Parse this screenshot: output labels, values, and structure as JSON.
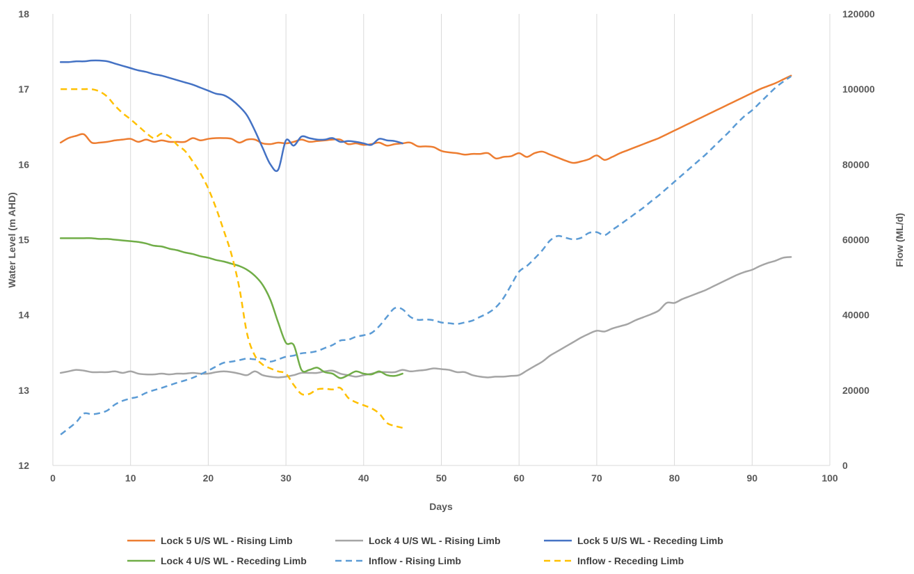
{
  "chart_data": {
    "type": "line",
    "xlabel": "Days",
    "ylabel": "Water Level (m AHD)",
    "y2label": "Flow (ML/d)",
    "xlim": [
      0,
      100
    ],
    "ylim": [
      12,
      18
    ],
    "y2lim": [
      0,
      120000
    ],
    "x_ticks": [
      0,
      10,
      20,
      30,
      40,
      50,
      60,
      70,
      80,
      90,
      100
    ],
    "y_ticks": [
      12,
      13,
      14,
      15,
      16,
      17,
      18
    ],
    "y2_ticks": [
      0,
      20000,
      40000,
      60000,
      80000,
      100000,
      120000
    ],
    "grid": "vertical",
    "legend_position": "bottom",
    "series": [
      {
        "name": "Lock 5 U/S WL - Rising Limb",
        "axis": "left",
        "color": "#ED7D31",
        "dash": "solid",
        "x": [
          1,
          2,
          3,
          4,
          5,
          6,
          7,
          8,
          9,
          10,
          11,
          12,
          13,
          14,
          15,
          16,
          17,
          18,
          19,
          20,
          21,
          22,
          23,
          24,
          25,
          26,
          27,
          28,
          29,
          30,
          31,
          32,
          33,
          34,
          35,
          36,
          37,
          38,
          39,
          40,
          41,
          42,
          43,
          44,
          45,
          46,
          47,
          48,
          49,
          50,
          51,
          52,
          53,
          54,
          55,
          56,
          57,
          58,
          59,
          60,
          61,
          62,
          63,
          64,
          65,
          66,
          67,
          68,
          69,
          70,
          71,
          72,
          73,
          74,
          75,
          76,
          77,
          78,
          79,
          80,
          81,
          82,
          83,
          84,
          85,
          86,
          87,
          88,
          89,
          90,
          91,
          92,
          93,
          94,
          95
        ],
        "y": [
          16.29,
          16.35,
          16.38,
          16.4,
          16.29,
          16.29,
          16.3,
          16.32,
          16.33,
          16.34,
          16.3,
          16.33,
          16.3,
          16.32,
          16.3,
          16.3,
          16.3,
          16.35,
          16.32,
          16.34,
          16.35,
          16.35,
          16.34,
          16.29,
          16.33,
          16.33,
          16.28,
          16.27,
          16.29,
          16.28,
          16.3,
          16.33,
          16.3,
          16.31,
          16.32,
          16.33,
          16.33,
          16.27,
          16.28,
          16.26,
          16.27,
          16.29,
          16.25,
          16.27,
          16.28,
          16.29,
          16.24,
          16.24,
          16.23,
          16.18,
          16.16,
          16.15,
          16.13,
          16.14,
          16.14,
          16.15,
          16.08,
          16.1,
          16.11,
          16.15,
          16.1,
          16.15,
          16.17,
          16.13,
          16.09,
          16.05,
          16.02,
          16.04,
          16.07,
          16.12,
          16.06,
          16.1,
          16.15,
          16.19,
          16.23,
          16.27,
          16.31,
          16.35,
          16.4,
          16.45,
          16.5,
          16.55,
          16.6,
          16.65,
          16.7,
          16.75,
          16.8,
          16.85,
          16.9,
          16.95,
          17.0,
          17.04,
          17.08,
          17.13,
          17.18
        ]
      },
      {
        "name": "Lock 4 U/S WL - Rising Limb",
        "axis": "left",
        "color": "#A5A5A5",
        "dash": "solid",
        "x": [
          1,
          2,
          3,
          4,
          5,
          6,
          7,
          8,
          9,
          10,
          11,
          12,
          13,
          14,
          15,
          16,
          17,
          18,
          19,
          20,
          21,
          22,
          23,
          24,
          25,
          26,
          27,
          28,
          29,
          30,
          31,
          32,
          33,
          34,
          35,
          36,
          37,
          38,
          39,
          40,
          41,
          42,
          43,
          44,
          45,
          46,
          47,
          48,
          49,
          50,
          51,
          52,
          53,
          54,
          55,
          56,
          57,
          58,
          59,
          60,
          61,
          62,
          63,
          64,
          65,
          66,
          67,
          68,
          69,
          70,
          71,
          72,
          73,
          74,
          75,
          76,
          77,
          78,
          79,
          80,
          81,
          82,
          83,
          84,
          85,
          86,
          87,
          88,
          89,
          90,
          91,
          92,
          93,
          94,
          95
        ],
        "y": [
          13.23,
          13.25,
          13.27,
          13.26,
          13.24,
          13.24,
          13.24,
          13.25,
          13.23,
          13.25,
          13.22,
          13.21,
          13.21,
          13.22,
          13.21,
          13.22,
          13.22,
          13.23,
          13.22,
          13.22,
          13.24,
          13.25,
          13.24,
          13.22,
          13.2,
          13.25,
          13.2,
          13.18,
          13.17,
          13.18,
          13.2,
          13.23,
          13.23,
          13.23,
          13.25,
          13.26,
          13.22,
          13.2,
          13.18,
          13.2,
          13.22,
          13.24,
          13.24,
          13.24,
          13.27,
          13.25,
          13.26,
          13.27,
          13.29,
          13.28,
          13.27,
          13.24,
          13.24,
          13.2,
          13.18,
          13.17,
          13.18,
          13.18,
          13.19,
          13.2,
          13.26,
          13.32,
          13.38,
          13.46,
          13.52,
          13.58,
          13.64,
          13.7,
          13.75,
          13.79,
          13.78,
          13.82,
          13.85,
          13.88,
          13.93,
          13.97,
          14.01,
          14.06,
          14.16,
          14.16,
          14.21,
          14.25,
          14.29,
          14.33,
          14.38,
          14.43,
          14.48,
          14.53,
          14.57,
          14.6,
          14.65,
          14.69,
          14.72,
          14.76,
          14.77
        ]
      },
      {
        "name": "Lock 5 U/S WL - Receding Limb",
        "axis": "left",
        "color": "#4472C4",
        "dash": "solid",
        "x": [
          1,
          2,
          3,
          4,
          5,
          6,
          7,
          8,
          9,
          10,
          11,
          12,
          13,
          14,
          15,
          16,
          17,
          18,
          19,
          20,
          21,
          22,
          23,
          24,
          25,
          26,
          27,
          28,
          29,
          30,
          31,
          32,
          33,
          34,
          35,
          36,
          37,
          38,
          39,
          40,
          41,
          42,
          43,
          44,
          45
        ],
        "y": [
          17.36,
          17.36,
          17.37,
          17.37,
          17.38,
          17.38,
          17.37,
          17.34,
          17.31,
          17.28,
          17.25,
          17.23,
          17.2,
          17.18,
          17.15,
          17.12,
          17.09,
          17.06,
          17.02,
          16.98,
          16.94,
          16.92,
          16.86,
          16.77,
          16.65,
          16.45,
          16.22,
          16.0,
          15.93,
          16.32,
          16.25,
          16.37,
          16.35,
          16.33,
          16.33,
          16.35,
          16.3,
          16.31,
          16.3,
          16.28,
          16.26,
          16.34,
          16.32,
          16.31,
          16.28
        ]
      },
      {
        "name": "Lock 4 U/S WL - Receding Limb",
        "axis": "left",
        "color": "#70AD47",
        "dash": "solid",
        "x": [
          1,
          2,
          3,
          4,
          5,
          6,
          7,
          8,
          9,
          10,
          11,
          12,
          13,
          14,
          15,
          16,
          17,
          18,
          19,
          20,
          21,
          22,
          23,
          24,
          25,
          26,
          27,
          28,
          29,
          30,
          31,
          32,
          33,
          34,
          35,
          36,
          37,
          38,
          39,
          40,
          41,
          42,
          43,
          44,
          45
        ],
        "y": [
          15.02,
          15.02,
          15.02,
          15.02,
          15.02,
          15.01,
          15.01,
          15.0,
          14.99,
          14.98,
          14.97,
          14.95,
          14.92,
          14.91,
          14.88,
          14.86,
          14.83,
          14.81,
          14.78,
          14.76,
          14.73,
          14.71,
          14.68,
          14.65,
          14.6,
          14.52,
          14.4,
          14.2,
          13.9,
          13.63,
          13.6,
          13.27,
          13.27,
          13.3,
          13.24,
          13.22,
          13.16,
          13.2,
          13.25,
          13.22,
          13.21,
          13.25,
          13.2,
          13.19,
          13.22
        ]
      },
      {
        "name": "Inflow - Rising Limb",
        "axis": "right",
        "color": "#5B9BD5",
        "dash": "dashed",
        "x": [
          1,
          2,
          3,
          4,
          5,
          6,
          7,
          8,
          9,
          10,
          11,
          12,
          13,
          14,
          15,
          16,
          17,
          18,
          19,
          20,
          21,
          22,
          23,
          24,
          25,
          26,
          27,
          28,
          29,
          30,
          31,
          32,
          33,
          34,
          35,
          36,
          37,
          38,
          39,
          40,
          41,
          42,
          43,
          44,
          45,
          46,
          47,
          48,
          49,
          50,
          51,
          52,
          53,
          54,
          55,
          56,
          57,
          58,
          59,
          60,
          61,
          62,
          63,
          64,
          65,
          66,
          67,
          68,
          69,
          70,
          71,
          72,
          73,
          74,
          75,
          76,
          77,
          78,
          79,
          80,
          81,
          82,
          83,
          84,
          85,
          86,
          87,
          88,
          89,
          90,
          91,
          92,
          93,
          94,
          95
        ],
        "y": [
          8200,
          9800,
          11500,
          13800,
          13600,
          13900,
          14600,
          16200,
          17200,
          17800,
          18300,
          19300,
          20000,
          20600,
          21300,
          22000,
          22600,
          23300,
          24200,
          25200,
          26300,
          27300,
          27600,
          28000,
          28400,
          28200,
          28400,
          27600,
          28200,
          28900,
          29200,
          29800,
          30000,
          30400,
          31200,
          32000,
          33200,
          33400,
          34200,
          34600,
          35200,
          37000,
          39500,
          41800,
          41500,
          39500,
          38700,
          38800,
          38600,
          38000,
          37800,
          37600,
          38000,
          38500,
          39500,
          40500,
          42000,
          44500,
          48000,
          51500,
          53000,
          55000,
          57200,
          59800,
          61000,
          60500,
          60100,
          60500,
          61800,
          62000,
          61200,
          62600,
          64000,
          65500,
          67000,
          68500,
          70200,
          71800,
          73600,
          75400,
          77200,
          79000,
          80800,
          82600,
          84600,
          86600,
          88600,
          90800,
          92800,
          94400,
          96400,
          98400,
          100400,
          102000,
          103400
        ]
      },
      {
        "name": "Inflow - Receding Limb",
        "axis": "right",
        "color": "#FFC000",
        "dash": "dashed",
        "x": [
          1,
          2,
          3,
          4,
          5,
          6,
          7,
          8,
          9,
          10,
          11,
          12,
          13,
          14,
          15,
          16,
          17,
          18,
          19,
          20,
          21,
          22,
          23,
          24,
          25,
          26,
          27,
          28,
          29,
          30,
          31,
          32,
          33,
          34,
          35,
          36,
          37,
          38,
          39,
          40,
          41,
          42,
          43,
          44,
          45
        ],
        "y": [
          100000,
          100000,
          100000,
          100000,
          100000,
          99400,
          98000,
          95600,
          93600,
          92000,
          90200,
          88400,
          87000,
          88200,
          87400,
          85200,
          83600,
          80800,
          77600,
          73600,
          68400,
          62400,
          56000,
          47200,
          35000,
          29200,
          26800,
          25800,
          25000,
          24400,
          21400,
          19000,
          19000,
          20200,
          20400,
          20200,
          20600,
          18000,
          16800,
          16000,
          15200,
          13800,
          11300,
          10500,
          10000
        ]
      }
    ]
  }
}
